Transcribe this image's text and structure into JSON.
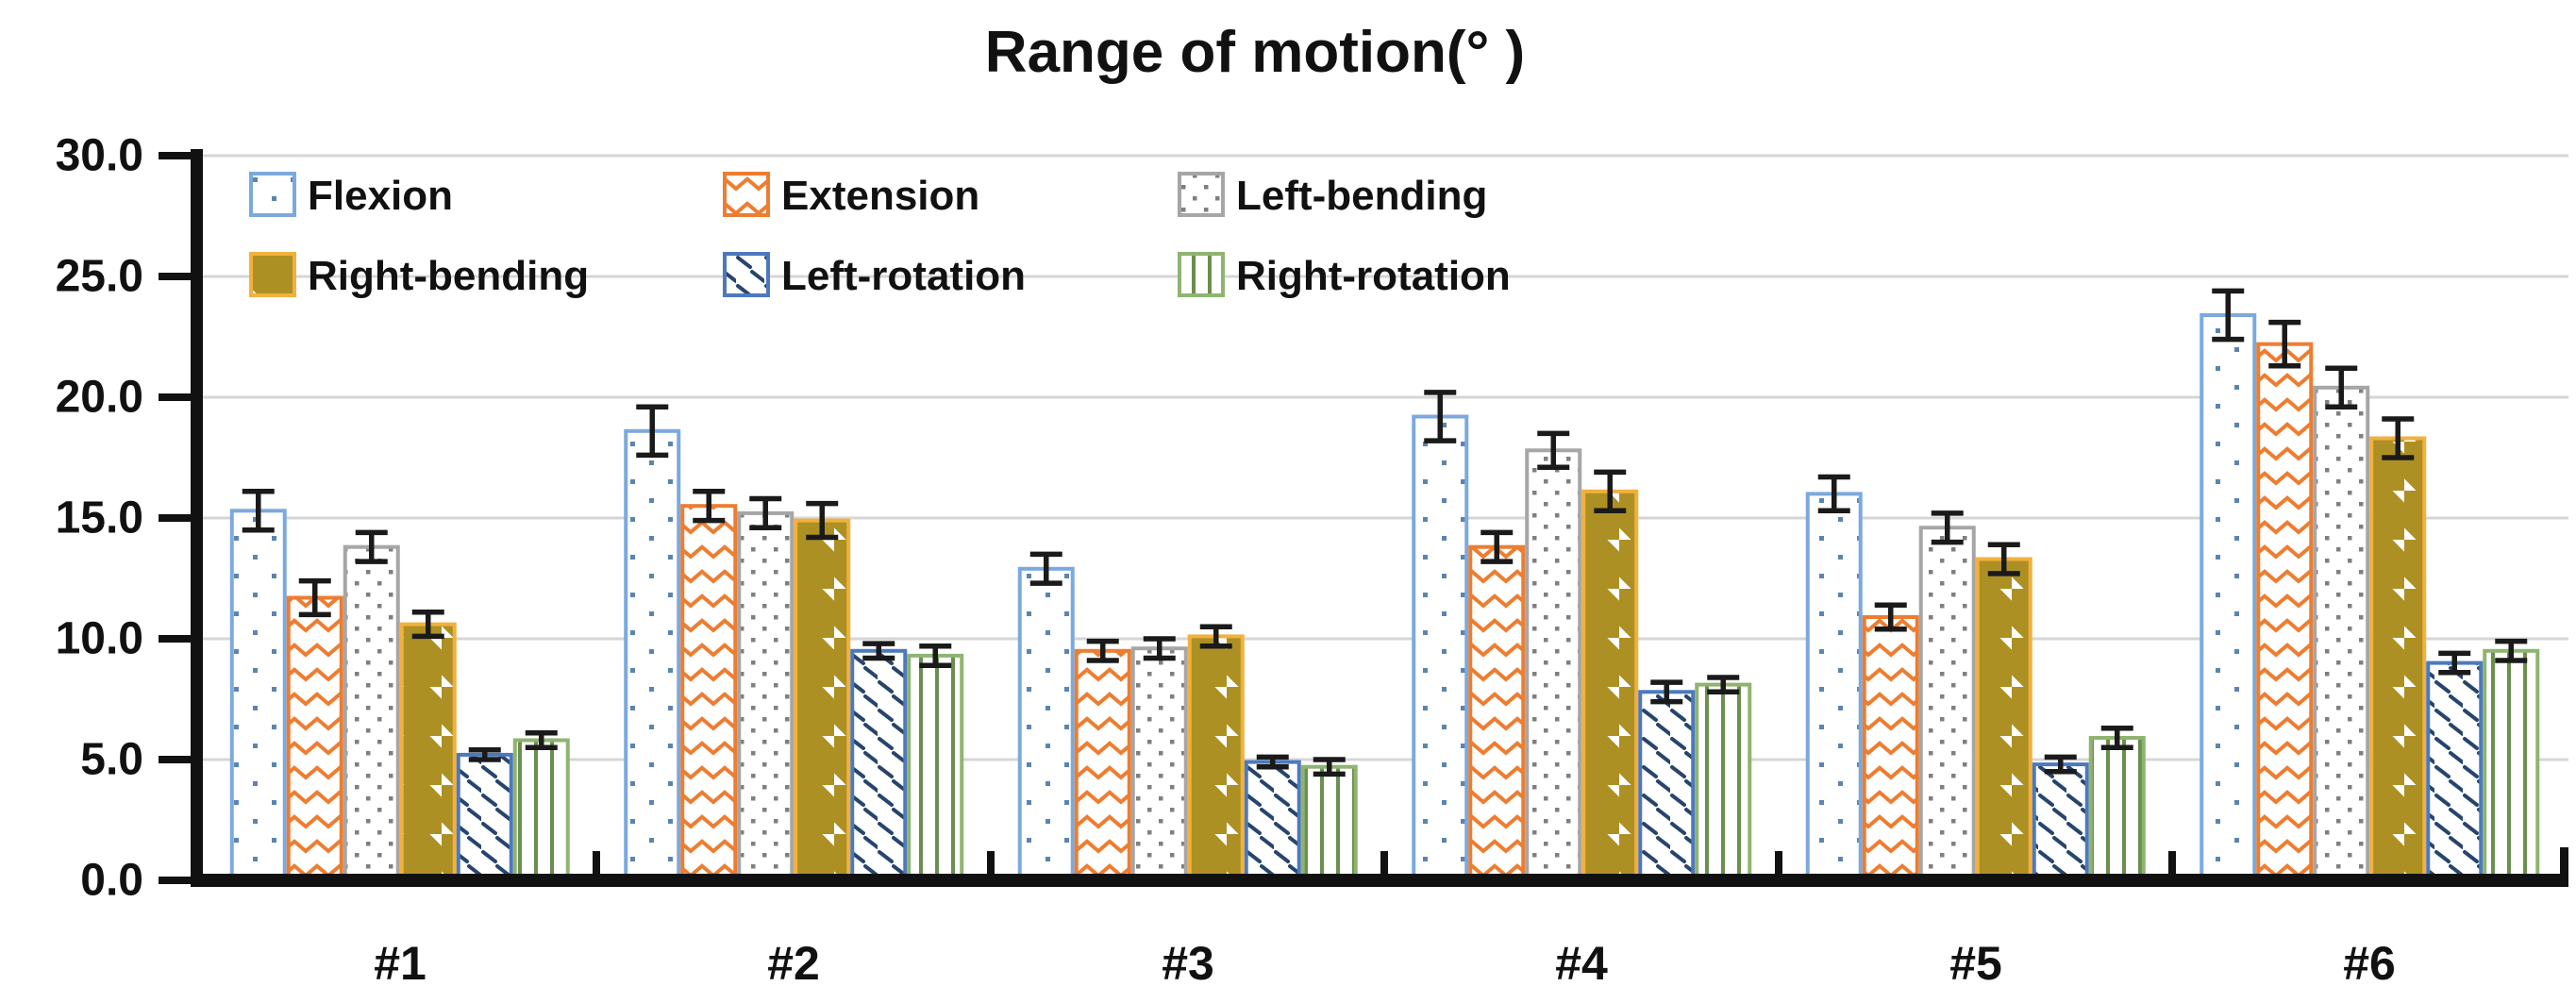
{
  "title": "Range of motion(° )",
  "chart_data": {
    "type": "bar",
    "title": "Range of motion(° )",
    "categories": [
      "#1",
      "#2",
      "#3",
      "#4",
      "#5",
      "#6"
    ],
    "series": [
      {
        "name": "Flexion",
        "pattern": "sparse-dots",
        "border_color": "#7CA9DD",
        "pattern_color": "#5B84B1",
        "values": [
          15.3,
          18.6,
          12.9,
          19.2,
          16.0,
          23.4
        ],
        "errors": [
          0.8,
          1.0,
          0.6,
          1.0,
          0.7,
          1.0
        ]
      },
      {
        "name": "Extension",
        "pattern": "waves",
        "border_color": "#ED7D31",
        "pattern_color": "#ED7D31",
        "values": [
          11.7,
          15.5,
          9.5,
          13.8,
          10.9,
          22.2
        ],
        "errors": [
          0.7,
          0.6,
          0.4,
          0.6,
          0.5,
          0.9
        ]
      },
      {
        "name": "Left-bending",
        "pattern": "dense-dots",
        "border_color": "#A6A6A6",
        "pattern_color": "#7F7F7F",
        "values": [
          13.8,
          15.2,
          9.6,
          17.8,
          14.6,
          20.4
        ],
        "errors": [
          0.6,
          0.6,
          0.4,
          0.7,
          0.6,
          0.8
        ]
      },
      {
        "name": "Right-bending",
        "pattern": "diagonal-stripes",
        "border_color": "#F2B03D",
        "pattern_color": "#AD9023",
        "values": [
          10.6,
          14.9,
          10.1,
          16.1,
          13.3,
          18.3
        ],
        "errors": [
          0.5,
          0.7,
          0.4,
          0.8,
          0.6,
          0.8
        ]
      },
      {
        "name": "Left-rotation",
        "pattern": "diagonal-dashes",
        "border_color": "#4C79BE",
        "pattern_color": "#26456E",
        "values": [
          5.2,
          9.5,
          4.9,
          7.8,
          4.8,
          9.0
        ],
        "errors": [
          0.2,
          0.3,
          0.2,
          0.4,
          0.3,
          0.4
        ]
      },
      {
        "name": "Right-rotation",
        "pattern": "vertical-lines",
        "border_color": "#8FB471",
        "pattern_color": "#6B8F4E",
        "values": [
          5.8,
          9.3,
          4.7,
          8.1,
          5.9,
          9.5
        ],
        "errors": [
          0.3,
          0.4,
          0.3,
          0.3,
          0.4,
          0.4
        ]
      }
    ],
    "ylim": [
      0,
      30
    ],
    "ytick_step": 5,
    "ytick_labels_top_to_bottom": [
      "30.0",
      "25.0",
      "20.0",
      "15.0",
      "10.0",
      "5.0",
      "0.0"
    ],
    "grid": true,
    "gridline_color": "#D6D6D6",
    "axis_color": "#111111",
    "error_bar_color": "#1A1A1A",
    "legend_position": "top-left-inside",
    "legend_rows": 2,
    "legend_columns": 3
  }
}
